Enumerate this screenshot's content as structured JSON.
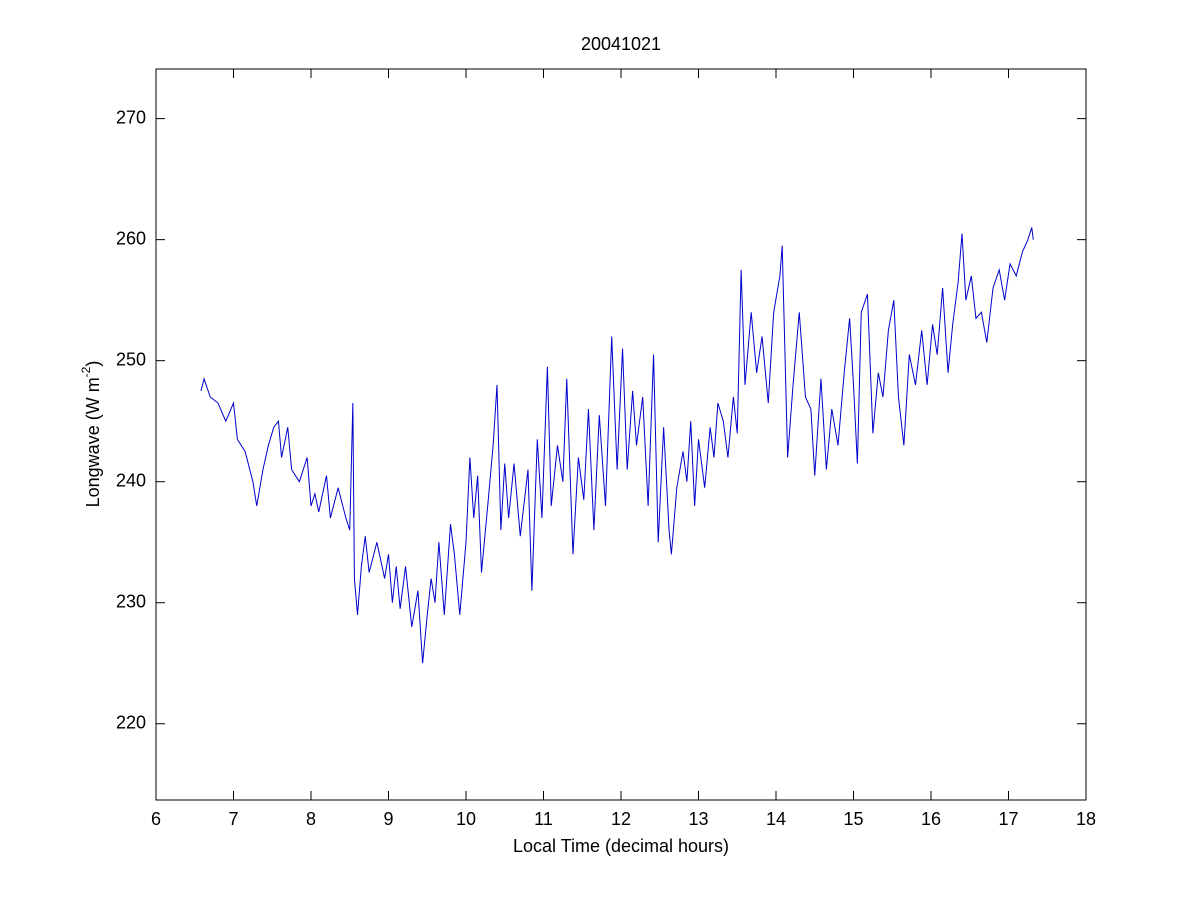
{
  "chart_data": {
    "type": "line",
    "title": "20041021",
    "x_label": "Local Time (decimal hours)",
    "y_label": {
      "text": "Longwave (W m",
      "sup": "-2",
      "end": ")"
    },
    "xlim": [
      6,
      18
    ],
    "xticks": [
      6,
      7,
      8,
      9,
      10,
      11,
      12,
      13,
      14,
      15,
      16,
      17,
      18
    ],
    "ylim": [
      213.7,
      274.1
    ],
    "yticks": [
      220,
      230,
      240,
      250,
      260,
      270
    ],
    "grid": false,
    "series": [
      {
        "color": "#0000cc",
        "x": [
          6.58,
          6.62,
          6.7,
          6.8,
          6.9,
          7.0,
          7.05,
          7.15,
          7.25,
          7.3,
          7.38,
          7.45,
          7.52,
          7.58,
          7.62,
          7.7,
          7.75,
          7.85,
          7.95,
          8.0,
          8.05,
          8.1,
          8.2,
          8.25,
          8.35,
          8.45,
          8.5,
          8.54,
          8.56,
          8.6,
          8.65,
          8.7,
          8.75,
          8.85,
          8.95,
          9.0,
          9.05,
          9.1,
          9.15,
          9.22,
          9.3,
          9.38,
          9.44,
          9.5,
          9.55,
          9.6,
          9.65,
          9.72,
          9.8,
          9.85,
          9.92,
          10.0,
          10.05,
          10.1,
          10.15,
          10.2,
          10.28,
          10.35,
          10.4,
          10.45,
          10.5,
          10.55,
          10.62,
          10.7,
          10.8,
          10.85,
          10.92,
          10.98,
          11.05,
          11.1,
          11.18,
          11.25,
          11.3,
          11.38,
          11.45,
          11.52,
          11.58,
          11.65,
          11.72,
          11.8,
          11.88,
          11.95,
          12.02,
          12.08,
          12.15,
          12.2,
          12.28,
          12.35,
          12.42,
          12.48,
          12.55,
          12.62,
          12.65,
          12.72,
          12.8,
          12.85,
          12.9,
          12.95,
          13.0,
          13.08,
          13.15,
          13.2,
          13.25,
          13.32,
          13.38,
          13.45,
          13.5,
          13.55,
          13.6,
          13.68,
          13.75,
          13.82,
          13.9,
          13.97,
          14.05,
          14.08,
          14.15,
          14.22,
          14.3,
          14.38,
          14.45,
          14.5,
          14.58,
          14.65,
          14.72,
          14.8,
          14.88,
          14.95,
          15.0,
          15.05,
          15.1,
          15.18,
          15.25,
          15.32,
          15.38,
          15.45,
          15.52,
          15.58,
          15.65,
          15.72,
          15.8,
          15.88,
          15.95,
          16.02,
          16.08,
          16.15,
          16.22,
          16.28,
          16.35,
          16.4,
          16.45,
          16.52,
          16.58,
          16.65,
          16.72,
          16.8,
          16.88,
          16.95,
          17.02,
          17.1,
          17.18,
          17.25,
          17.3,
          17.32
        ],
        "values": [
          247.5,
          248.5,
          247,
          246.5,
          245,
          246.5,
          243.5,
          242.5,
          240,
          238,
          241,
          243,
          244.5,
          245,
          242,
          244.5,
          241,
          240,
          242,
          238,
          239,
          237.5,
          240.5,
          237,
          239.5,
          237,
          236,
          246.5,
          232,
          229,
          233,
          235.5,
          232.5,
          235,
          232,
          234,
          230,
          233,
          229.5,
          233,
          228,
          231,
          225,
          229,
          232,
          230,
          235,
          229,
          236.5,
          234,
          229,
          235,
          242,
          237,
          240.5,
          232.5,
          238,
          243,
          248,
          236,
          241.5,
          237,
          241.5,
          235.5,
          241,
          231,
          243.5,
          237,
          249.5,
          238,
          243,
          240,
          248.5,
          234,
          242,
          238.5,
          246,
          236,
          245.5,
          238,
          252,
          241,
          251,
          241,
          247.5,
          243,
          247,
          238,
          250.5,
          235,
          244.5,
          236,
          234,
          239.5,
          242.5,
          240,
          245,
          238,
          243.5,
          239.5,
          244.5,
          242,
          246.5,
          245,
          242,
          247,
          244,
          257.5,
          248,
          254,
          249,
          252,
          246.5,
          254,
          257,
          259.5,
          242,
          248,
          254,
          247,
          246,
          240.5,
          248.5,
          241,
          246,
          243,
          249,
          253.5,
          248,
          241.5,
          254,
          255.5,
          244,
          249,
          247,
          252.5,
          255,
          247,
          243,
          250.5,
          248,
          252.5,
          248,
          253,
          250.5,
          256,
          249,
          253,
          256.5,
          260.5,
          255,
          257,
          253.5,
          254,
          251.5,
          256,
          257.5,
          255,
          258,
          257,
          259,
          260,
          261,
          260
        ]
      }
    ]
  }
}
